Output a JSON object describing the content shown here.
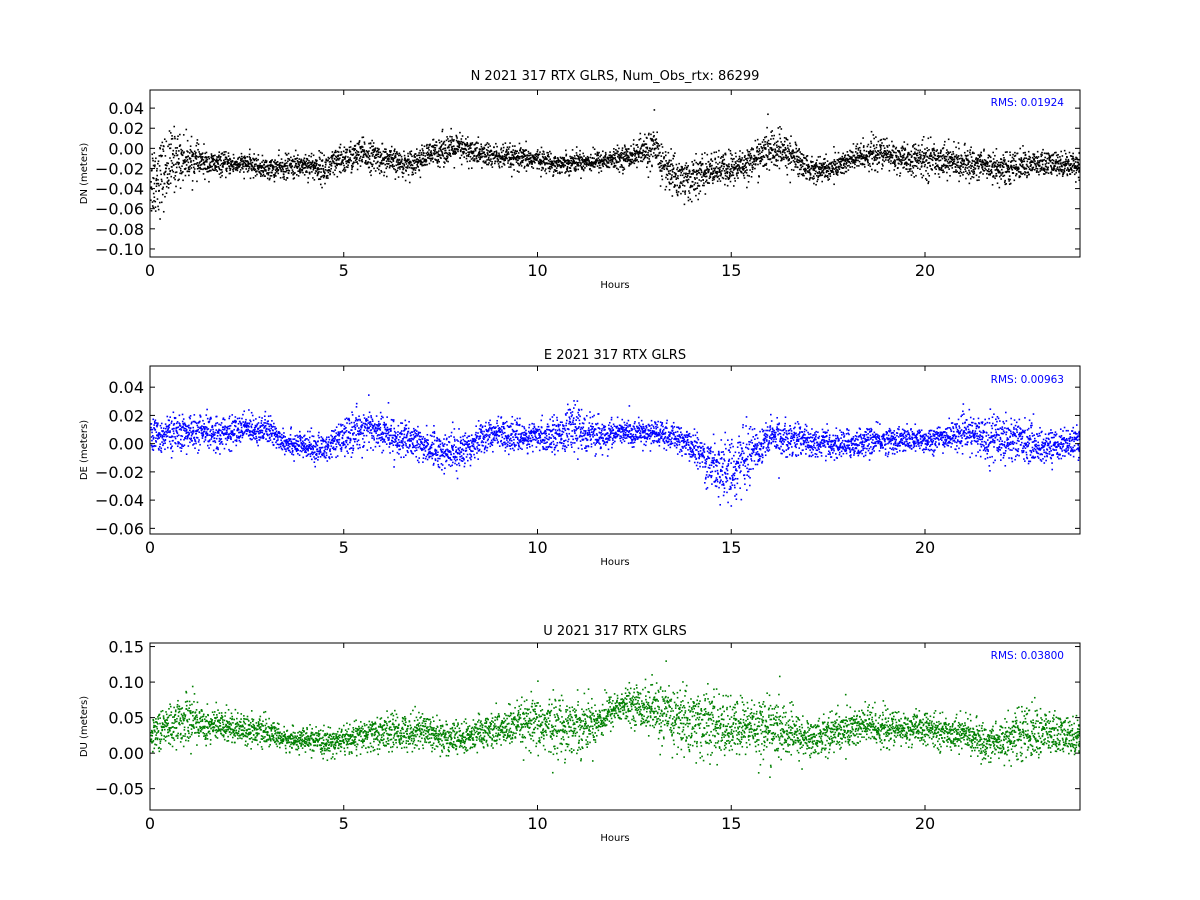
{
  "chart_data": [
    {
      "type": "scatter",
      "title": "N 2021 317 RTX  GLRS, Num_Obs_rtx: 86299",
      "xlabel": "Hours",
      "ylabel": "DN (meters)",
      "annotation": "RMS:  0.01924",
      "color": "#000000",
      "annotation_color": "#0000ff",
      "xlim": [
        0,
        24
      ],
      "ylim": [
        -0.108,
        0.058
      ],
      "xticks": [
        0,
        5,
        10,
        15,
        20
      ],
      "xtick_labels": [
        "0",
        "5",
        "10",
        "15",
        "20"
      ],
      "yticks": [
        0.04,
        0.02,
        0.0,
        -0.02,
        -0.04,
        -0.06,
        -0.08,
        -0.1
      ],
      "ytick_labels": [
        "0.04",
        "0.02",
        "0.00",
        "−0.02",
        "−0.04",
        "−0.06",
        "−0.08",
        "−0.10"
      ],
      "grid": false,
      "series": [
        {
          "x": [
            0,
            0.3,
            0.6,
            1,
            1.5,
            2,
            2.5,
            3,
            3.5,
            4,
            4.5,
            5,
            5.5,
            6,
            6.5,
            7,
            7.5,
            8,
            8.5,
            9,
            9.5,
            10,
            10.5,
            11,
            11.5,
            12,
            12.5,
            13,
            13.3,
            13.7,
            14,
            14.5,
            15,
            15.5,
            16,
            16.5,
            17,
            17.5,
            18,
            18.5,
            19,
            19.5,
            20,
            20.5,
            21,
            21.5,
            22,
            22.5,
            23,
            23.5,
            24
          ],
          "center": [
            -0.03,
            -0.025,
            -0.01,
            -0.01,
            -0.015,
            -0.015,
            -0.015,
            -0.02,
            -0.018,
            -0.015,
            -0.02,
            -0.01,
            -0.005,
            -0.01,
            -0.015,
            -0.01,
            0.0,
            0.0,
            -0.005,
            -0.008,
            -0.01,
            -0.01,
            -0.015,
            -0.012,
            -0.012,
            -0.01,
            -0.005,
            0.0,
            -0.02,
            -0.03,
            -0.03,
            -0.02,
            -0.02,
            -0.012,
            0.0,
            -0.005,
            -0.02,
            -0.02,
            -0.012,
            -0.005,
            -0.005,
            -0.012,
            -0.01,
            -0.01,
            -0.015,
            -0.015,
            -0.02,
            -0.015,
            -0.015,
            -0.015,
            -0.015
          ],
          "spread": [
            0.04,
            0.035,
            0.03,
            0.018,
            0.012,
            0.01,
            0.01,
            0.01,
            0.012,
            0.012,
            0.015,
            0.015,
            0.015,
            0.014,
            0.012,
            0.012,
            0.015,
            0.015,
            0.013,
            0.012,
            0.012,
            0.01,
            0.01,
            0.01,
            0.01,
            0.01,
            0.012,
            0.022,
            0.02,
            0.022,
            0.02,
            0.015,
            0.018,
            0.015,
            0.02,
            0.018,
            0.012,
            0.012,
            0.013,
            0.015,
            0.015,
            0.014,
            0.018,
            0.015,
            0.015,
            0.015,
            0.015,
            0.013,
            0.013,
            0.012,
            0.012
          ]
        }
      ]
    },
    {
      "type": "scatter",
      "title": "E 2021 317 RTX  GLRS",
      "xlabel": "Hours",
      "ylabel": "DE (meters)",
      "annotation": "RMS:  0.00963",
      "color": "#0000ff",
      "annotation_color": "#0000ff",
      "xlim": [
        0,
        24
      ],
      "ylim": [
        -0.064,
        0.055
      ],
      "xticks": [
        0,
        5,
        10,
        15,
        20
      ],
      "xtick_labels": [
        "0",
        "5",
        "10",
        "15",
        "20"
      ],
      "yticks": [
        0.04,
        0.02,
        0.0,
        -0.02,
        -0.04,
        -0.06
      ],
      "ytick_labels": [
        "0.04",
        "0.02",
        "0.00",
        "−0.02",
        "−0.04",
        "−0.06"
      ],
      "grid": false,
      "series": [
        {
          "x": [
            0,
            0.5,
            1,
            1.5,
            2,
            2.5,
            3,
            3.5,
            4,
            4.5,
            5,
            5.5,
            6,
            6.5,
            7,
            7.5,
            8,
            8.5,
            9,
            9.5,
            10,
            10.5,
            11,
            11.5,
            12,
            12.5,
            13,
            13.5,
            14,
            14.5,
            15,
            15.5,
            16,
            16.5,
            17,
            17.5,
            18,
            18.5,
            19,
            19.5,
            20,
            20.5,
            21,
            21.5,
            22,
            22.5,
            23,
            23.5,
            24
          ],
          "center": [
            0.005,
            0.008,
            0.008,
            0.008,
            0.008,
            0.012,
            0.01,
            0.002,
            -0.002,
            -0.003,
            0.005,
            0.012,
            0.008,
            0.003,
            0.0,
            -0.005,
            -0.005,
            0.005,
            0.008,
            0.005,
            0.005,
            0.008,
            0.012,
            0.005,
            0.008,
            0.008,
            0.008,
            0.005,
            -0.002,
            -0.015,
            -0.018,
            -0.005,
            0.005,
            0.005,
            0.002,
            0.0,
            0.0,
            0.002,
            0.003,
            0.003,
            0.003,
            0.005,
            0.008,
            0.005,
            0.005,
            0.003,
            -0.002,
            0.0,
            0.002
          ],
          "spread": [
            0.012,
            0.012,
            0.012,
            0.012,
            0.011,
            0.01,
            0.01,
            0.009,
            0.009,
            0.01,
            0.012,
            0.015,
            0.013,
            0.012,
            0.012,
            0.013,
            0.013,
            0.012,
            0.01,
            0.01,
            0.01,
            0.012,
            0.016,
            0.012,
            0.009,
            0.009,
            0.009,
            0.009,
            0.01,
            0.02,
            0.022,
            0.018,
            0.012,
            0.012,
            0.01,
            0.01,
            0.01,
            0.01,
            0.009,
            0.009,
            0.009,
            0.009,
            0.011,
            0.015,
            0.018,
            0.014,
            0.012,
            0.01,
            0.01
          ]
        }
      ]
    },
    {
      "type": "scatter",
      "title": "U 2021 317 RTX  GLRS",
      "xlabel": "Hours",
      "ylabel": "DU (meters)",
      "annotation": "RMS:  0.03800",
      "color": "#008000",
      "annotation_color": "#0000ff",
      "xlim": [
        0,
        24
      ],
      "ylim": [
        -0.08,
        0.155
      ],
      "xticks": [
        0,
        5,
        10,
        15,
        20
      ],
      "xtick_labels": [
        "0",
        "5",
        "10",
        "15",
        "20"
      ],
      "yticks": [
        0.15,
        0.1,
        0.05,
        0.0,
        -0.05
      ],
      "ytick_labels": [
        "0.15",
        "0.10",
        "0.05",
        "0.00",
        "−0.05"
      ],
      "grid": false,
      "series": [
        {
          "x": [
            0,
            0.5,
            1,
            1.5,
            2,
            2.5,
            3,
            3.5,
            4,
            4.5,
            5,
            5.5,
            6,
            6.5,
            7,
            7.5,
            8,
            8.5,
            9,
            9.5,
            10,
            10.5,
            11,
            11.5,
            12,
            12.5,
            13,
            13.5,
            14,
            14.5,
            15,
            15.5,
            16,
            16.5,
            17,
            17.5,
            18,
            18.5,
            19,
            19.5,
            20,
            20.5,
            21,
            21.5,
            22,
            22.5,
            23,
            23.5,
            24
          ],
          "center": [
            0.03,
            0.04,
            0.05,
            0.04,
            0.04,
            0.035,
            0.03,
            0.02,
            0.02,
            0.015,
            0.02,
            0.025,
            0.03,
            0.03,
            0.035,
            0.025,
            0.02,
            0.03,
            0.035,
            0.04,
            0.04,
            0.04,
            0.04,
            0.045,
            0.065,
            0.07,
            0.06,
            0.05,
            0.045,
            0.04,
            0.035,
            0.04,
            0.035,
            0.03,
            0.02,
            0.03,
            0.035,
            0.04,
            0.035,
            0.035,
            0.035,
            0.03,
            0.03,
            0.015,
            0.02,
            0.03,
            0.03,
            0.025,
            0.025
          ],
          "spread": [
            0.025,
            0.03,
            0.035,
            0.025,
            0.022,
            0.02,
            0.018,
            0.015,
            0.015,
            0.018,
            0.02,
            0.022,
            0.025,
            0.025,
            0.025,
            0.025,
            0.022,
            0.022,
            0.025,
            0.03,
            0.04,
            0.04,
            0.04,
            0.03,
            0.022,
            0.025,
            0.04,
            0.045,
            0.05,
            0.045,
            0.04,
            0.04,
            0.045,
            0.035,
            0.025,
            0.028,
            0.03,
            0.03,
            0.025,
            0.022,
            0.022,
            0.022,
            0.022,
            0.025,
            0.03,
            0.035,
            0.035,
            0.028,
            0.025
          ]
        }
      ]
    }
  ]
}
